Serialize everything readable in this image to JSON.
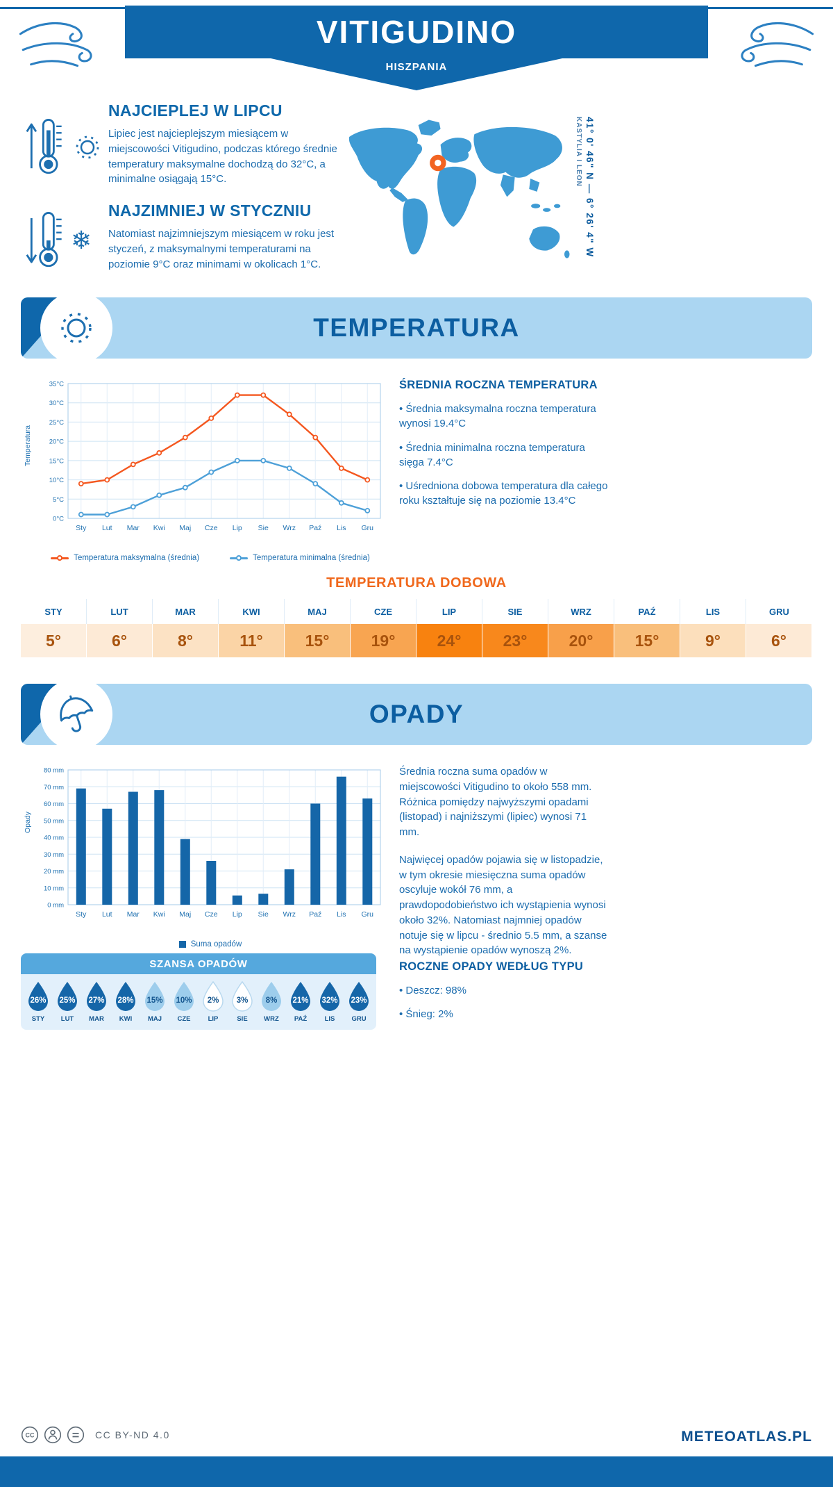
{
  "meta": {
    "title": "VITIGUDINO",
    "subtitle": "HISZPANIA"
  },
  "intro": {
    "warm": {
      "heading": "NAJCIEPLEJ W LIPCU",
      "text": "Lipiec jest najcieplejszym miesiącem w miejscowości Vitigudino, podczas którego średnie temperatury maksymalne dochodzą do 32°C, a minimalne osiągają 15°C."
    },
    "cold": {
      "heading": "NAJZIMNIEJ W STYCZNIU",
      "text": "Natomiast najzimniejszym miesiącem w roku jest styczeń, z maksymalnymi temperaturami na poziomie 9°C oraz minimami w okolicach 1°C."
    }
  },
  "map": {
    "coordinates": "41° 0' 46\" N — 6° 26' 4\" W",
    "region": "KASTYLIA I LEON"
  },
  "temperature": {
    "section_title": "TEMPERATURA",
    "summary": {
      "heading": "ŚREDNIA ROCZNA TEMPERATURA",
      "bullets": [
        "Średnia maksymalna roczna temperatura wynosi 19.4°C",
        "Średnia minimalna roczna temperatura sięga 7.4°C",
        "Uśredniona dobowa temperatura dla całego roku kształtuje się na poziomie 13.4°C"
      ]
    },
    "daily": {
      "heading": "TEMPERATURA DOBOWA",
      "months": [
        "STY",
        "LUT",
        "MAR",
        "KWI",
        "MAJ",
        "CZE",
        "LIP",
        "SIE",
        "WRZ",
        "PAŹ",
        "LIS",
        "GRU"
      ],
      "values": [
        "5°",
        "6°",
        "8°",
        "11°",
        "15°",
        "19°",
        "24°",
        "23°",
        "20°",
        "15°",
        "9°",
        "6°"
      ],
      "cell_colors": [
        "#fdeede",
        "#fdead6",
        "#fce2c4",
        "#fbd4a6",
        "#f9bf7c",
        "#f8a551",
        "#f8820f",
        "#f8881c",
        "#f8a04a",
        "#f9bf7c",
        "#fcdfbc",
        "#fdead6"
      ]
    }
  },
  "precipitation": {
    "section_title": "OPADY",
    "paragraphs": [
      "Średnia roczna suma opadów w miejscowości Vitigudino to około 558 mm. Różnica pomiędzy najwyższymi opadami (listopad) i najniższymi (lipiec) wynosi 71 mm.",
      "Najwięcej opadów pojawia się w listopadzie, w tym okresie miesięczna suma opadów oscyluje wokół 76 mm, a prawdopodobieństwo ich wystąpienia wynosi około 32%. Natomiast najmniej opadów notuje się w lipcu - średnio 5.5 mm, a szanse na wystąpienie opadów wynoszą 2%."
    ],
    "chance": {
      "heading": "SZANSA OPADÓW",
      "months": [
        "STY",
        "LUT",
        "MAR",
        "KWI",
        "MAJ",
        "CZE",
        "LIP",
        "SIE",
        "WRZ",
        "PAŹ",
        "LIS",
        "GRU"
      ],
      "values": [
        "26%",
        "25%",
        "27%",
        "28%",
        "15%",
        "10%",
        "2%",
        "3%",
        "8%",
        "21%",
        "32%",
        "23%"
      ],
      "levels": [
        "dark",
        "dark",
        "dark",
        "dark",
        "light",
        "light",
        "white",
        "white",
        "light",
        "dark",
        "dark",
        "dark"
      ]
    },
    "by_type": {
      "heading": "ROCZNE OPADY WEDŁUG TYPU",
      "bullets": [
        "Deszcz: 98%",
        "Śnieg: 2%"
      ]
    }
  },
  "chart_data": [
    {
      "type": "line",
      "title": "Temperatura w roku (średnie miesięczne)",
      "ylabel": "Temperatura",
      "categories": [
        "Sty",
        "Lut",
        "Mar",
        "Kwi",
        "Maj",
        "Cze",
        "Lip",
        "Sie",
        "Wrz",
        "Paź",
        "Lis",
        "Gru"
      ],
      "series": [
        {
          "name": "Temperatura maksymalna (średnia)",
          "color": "#f4571f",
          "values": [
            9,
            10,
            14,
            17,
            21,
            26,
            32,
            32,
            27,
            21,
            13,
            10
          ]
        },
        {
          "name": "Temperatura minimalna (średnia)",
          "color": "#4da0d8",
          "values": [
            1,
            1,
            3,
            6,
            8,
            12,
            15,
            15,
            13,
            9,
            4,
            2
          ]
        }
      ],
      "ylim": [
        0,
        35
      ],
      "ytick_step": 5,
      "ytick_suffix": "°C",
      "grid": true,
      "legend_position": "bottom"
    },
    {
      "type": "bar",
      "title": "Suma opadów miesięcznie (mm)",
      "ylabel": "Opady",
      "categories": [
        "Sty",
        "Lut",
        "Mar",
        "Kwi",
        "Maj",
        "Cze",
        "Lip",
        "Sie",
        "Wrz",
        "Paź",
        "Lis",
        "Gru"
      ],
      "series": [
        {
          "name": "Suma opadów",
          "color": "#1566a8",
          "values": [
            69,
            57,
            67,
            68,
            39,
            26,
            5.5,
            6.5,
            21,
            60,
            76,
            63
          ]
        }
      ],
      "ylim": [
        0,
        80
      ],
      "ytick_step": 10,
      "ytick_suffix": " mm",
      "grid": true,
      "legend_position": "bottom"
    }
  ],
  "colors": {
    "primary": "#0f67ab",
    "banner_light": "#abd6f2",
    "heading": "#0c5ea1",
    "body_text": "#1b6cae",
    "accent_orange": "#f0681c",
    "marker_orange": "#f26422",
    "drop_dark": "#1566a8",
    "drop_light": "#9dcdec",
    "chance_header": "#55a8dd",
    "chance_panel": "#e2f0fb"
  },
  "footer": {
    "license": "CC BY-ND 4.0",
    "brand": "METEOATLAS.PL"
  }
}
